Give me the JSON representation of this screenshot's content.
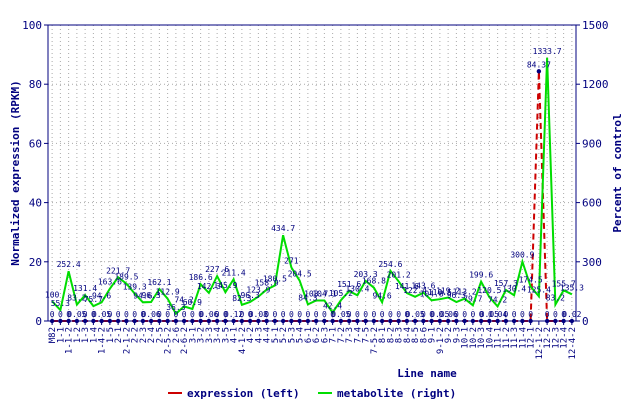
{
  "chart_data": {
    "type": "line",
    "xlabel": "Line name",
    "ylabel_left": "Normalized expression (RPKM)",
    "ylabel_right": "Percent of control",
    "ylim_left": [
      0,
      100
    ],
    "ylim_right": [
      0,
      1500
    ],
    "yticks_left": [
      "0",
      "20",
      "40",
      "60",
      "80",
      "100"
    ],
    "yticks_right": [
      "0",
      "300",
      "600",
      "900",
      "1200",
      "1500"
    ],
    "grid": true,
    "legend_position": "bottom",
    "categories": [
      "M82",
      "1-1",
      "1-1-2",
      "1-2",
      "1-3",
      "1-4",
      "1-4-2",
      "1-5",
      "2-1",
      "2-1-2",
      "2-2",
      "2-3",
      "2-4",
      "2-5",
      "2-5-2",
      "2-6",
      "2-6-2",
      "3-1",
      "3-2",
      "3-3",
      "3-4",
      "3-5",
      "4-1",
      "4-1-2",
      "4-2",
      "4-3",
      "4-4",
      "5-1",
      "5-2",
      "5-3",
      "5-4",
      "6-1",
      "6-2",
      "6-3",
      "7-1",
      "7-2",
      "7-3",
      "7-4",
      "7-5",
      "7-5-2",
      "8-1",
      "8-2",
      "8-3",
      "8-4",
      "8-5",
      "8-6",
      "9-1",
      "9-1-2",
      "9-2",
      "9-3",
      "10-1",
      "10-2",
      "10-3",
      "10-4",
      "11-1",
      "11-2",
      "11-3",
      "11-4",
      "12-1",
      "12-1-2",
      "12-2",
      "12-3",
      "12-4",
      "12-4-2"
    ],
    "series": [
      {
        "name": "expression (left)",
        "axis": "left",
        "color": "#cc0000",
        "values": [
          0,
          0,
          0,
          0,
          0,
          0,
          0,
          0,
          0,
          0,
          0,
          0,
          0,
          0,
          0,
          0,
          0,
          0,
          0,
          0,
          0,
          0,
          0,
          0,
          0,
          0,
          0,
          0,
          0,
          0,
          0,
          0,
          0,
          0,
          0,
          0,
          0,
          0,
          0,
          0,
          0,
          0,
          0,
          0,
          0,
          0,
          0,
          0,
          0,
          0,
          0,
          0,
          0,
          0,
          0,
          0,
          0,
          0,
          0,
          84.37,
          0,
          0,
          0,
          0
        ],
        "labels": [
          "0",
          "0",
          "0",
          "0.05",
          "0",
          "0",
          "0.05",
          "0",
          "0",
          "0",
          "0",
          "0",
          "0.06",
          "0",
          "0",
          "0",
          "0",
          "0",
          "0",
          "0.06",
          "0",
          "0",
          "0.12",
          "0",
          "0",
          "0.08",
          "0",
          "0",
          "0",
          "0",
          "0",
          "0",
          "0",
          "0",
          "0",
          "0.05",
          "0",
          "0",
          "0",
          "0",
          "0",
          "0",
          "0",
          "0",
          "0.05",
          "0",
          "0",
          "0.05",
          "0.06",
          "0",
          "0",
          "0",
          "0",
          "0.05",
          "0.04",
          "0",
          "0",
          "0",
          "0",
          "84.37",
          "0",
          "0",
          "0",
          "0.02"
        ]
      },
      {
        "name": "metabolite (right)",
        "axis": "right",
        "color": "#00dd00",
        "values": [
          100,
          55.3,
          252.4,
          83.2,
          131.4,
          75.7,
          94.6,
          163.6,
          221.7,
          189.5,
          139.3,
          94.6,
          96.3,
          162.1,
          112.9,
          36.3,
          74.2,
          60.9,
          186.6,
          142.3,
          227.6,
          145.9,
          211.4,
          82.3,
          96.3,
          123.9,
          158.9,
          180.5,
          434.7,
          271,
          204.5,
          84.3,
          103.7,
          104.1,
          42.4,
          105.2,
          151.6,
          130.4,
          203.3,
          168.8,
          94.6,
          254.6,
          201.2,
          141.6,
          122.4,
          143.6,
          104.8,
          110.5,
          119.2,
          96.3,
          113.2,
          79.7,
          199.6,
          120.5,
          74.2,
          157.3,
          130.4,
          300.9,
          174.5,
          125.4,
          1333.7,
          83.2,
          155.7,
          135.3
        ],
        "labels": [
          "100",
          "55.3",
          "252.4",
          "83.2",
          "131.4",
          "75.7",
          "94.6",
          "163.6",
          "221.7",
          "189.5",
          "139.3",
          "94.6",
          "96.3",
          "162.1",
          "112.9",
          "36.3",
          "74.2",
          "60.9",
          "186.6",
          "142.3",
          "227.6",
          "145.9",
          "211.4",
          "82.3",
          "96.3",
          "123.9",
          "158.9",
          "180.5",
          "434.7",
          "271",
          "204.5",
          "84.3",
          "103.7",
          "104.1",
          "42.4",
          "105.2",
          "151.6",
          "130.4",
          "203.3",
          "168.8",
          "94.6",
          "254.6",
          "201.2",
          "141.6",
          "122.4",
          "143.6",
          "104.8",
          "110.5",
          "119.2",
          "96.3",
          "113.2",
          "79.7",
          "199.6",
          "120.5",
          "74.2",
          "157.3",
          "130.4",
          "300.9",
          "174.5",
          "125.4",
          "1333.7",
          "83.2",
          "155.7",
          "135.3"
        ]
      }
    ]
  }
}
